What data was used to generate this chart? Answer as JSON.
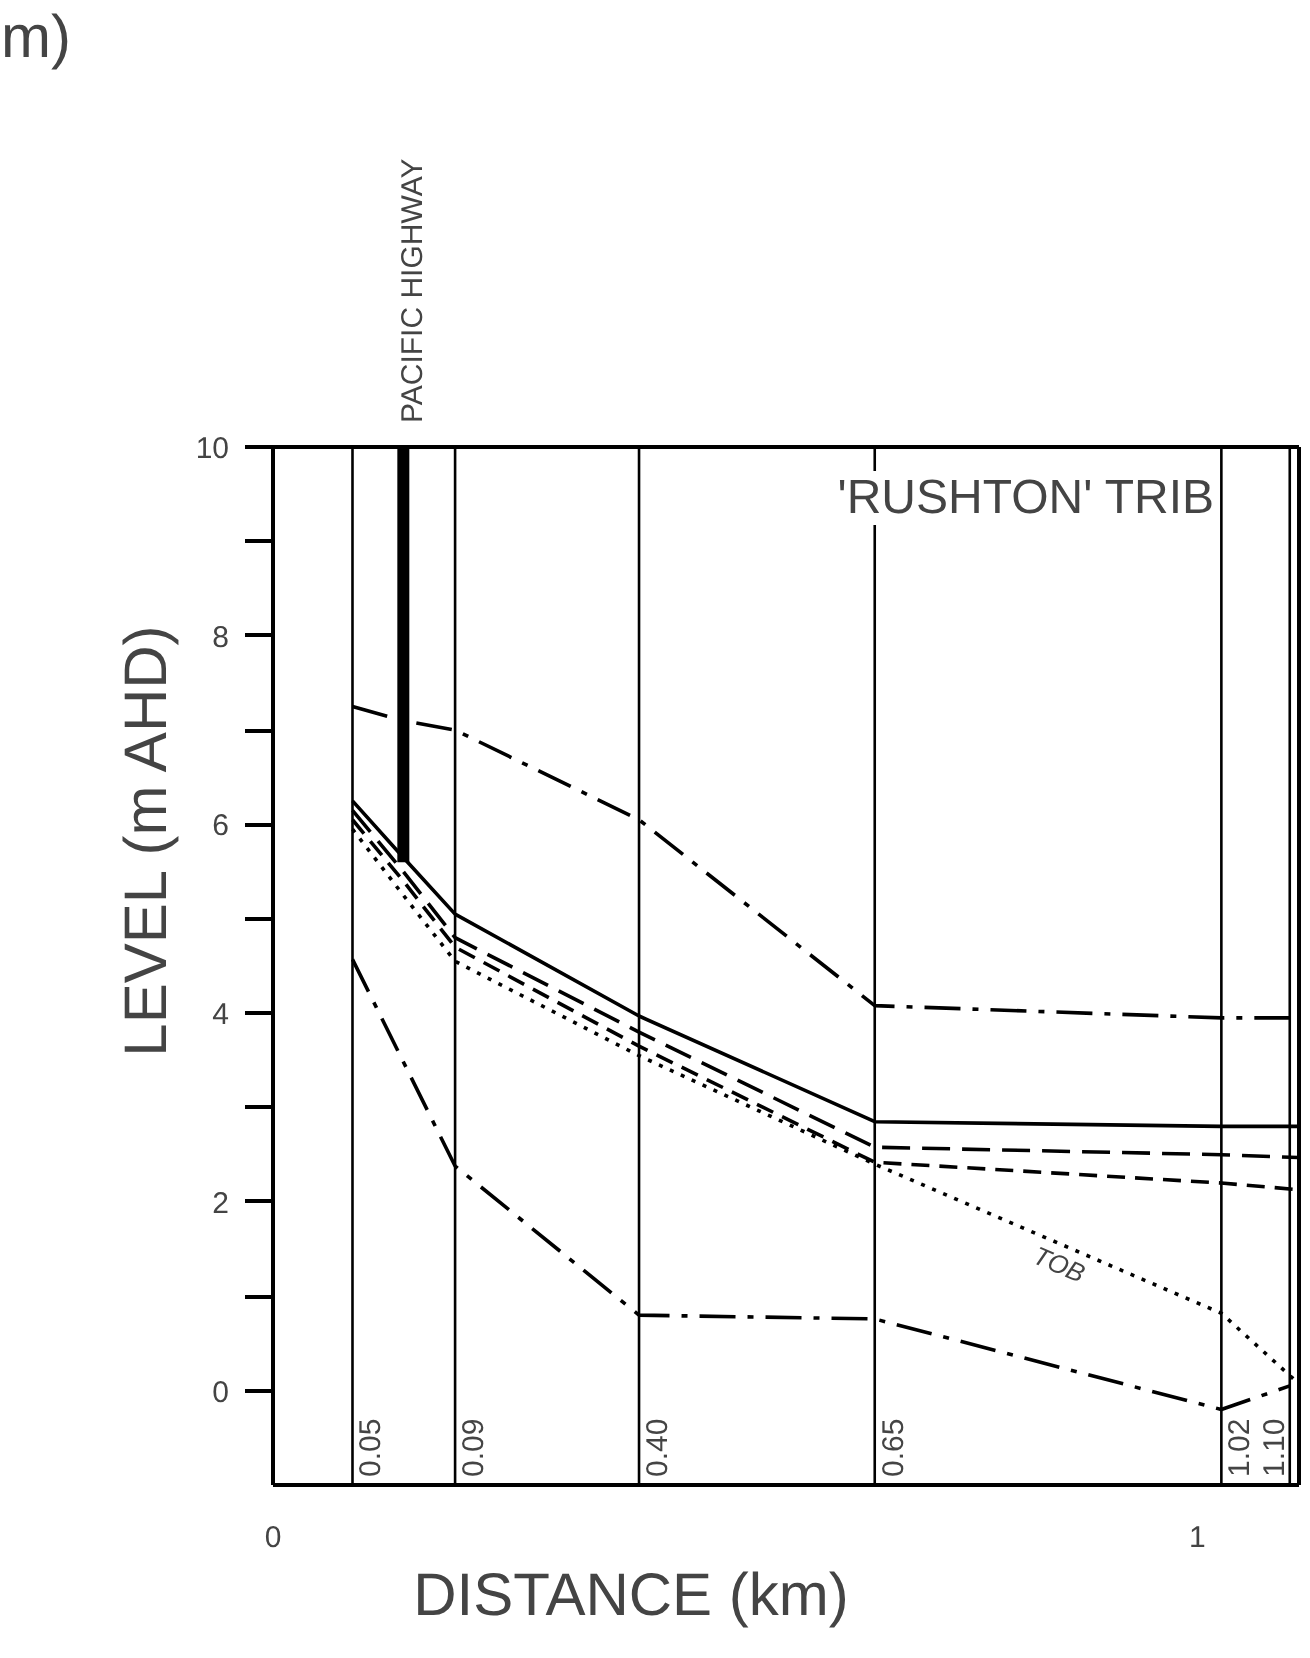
{
  "chart_data": {
    "type": "line",
    "xlabel": "DISTANCE    (km)",
    "ylabel": "LEVEL  (m AHD)",
    "xlim": [
      0,
      1.11
    ],
    "ylim": [
      -1,
      10
    ],
    "xticks": [
      0,
      1
    ],
    "yticks": [
      0,
      {
        "value": 1,
        "label": null
      },
      2,
      {
        "value": 3,
        "label": null
      },
      4,
      {
        "value": 5,
        "label": null
      },
      6,
      {
        "value": 7,
        "label": null
      },
      8,
      {
        "value": 9,
        "label": null
      },
      10
    ],
    "grid": false,
    "marker": "none",
    "series": [
      {
        "color": "#000000",
        "line_style": "dashdot",
        "x": [
          0.086,
          0.141,
          0.197,
          0.396,
          0.651,
          1.026,
          1.109
        ],
        "values": [
          7.25,
          7.1,
          7.0,
          6.05,
          4.08,
          3.95,
          3.95
        ]
      },
      {
        "color": "#000000",
        "line_style": "solid",
        "x": [
          0.086,
          0.141,
          0.197,
          0.396,
          0.651,
          1.026,
          1.109
        ],
        "values": [
          6.25,
          5.65,
          5.05,
          3.97,
          2.85,
          2.8,
          2.8
        ]
      },
      {
        "color": "#000000",
        "line_style": "dashed",
        "x": [
          0.086,
          0.141,
          0.197,
          0.396,
          0.651,
          1.026,
          1.109
        ],
        "values": [
          6.15,
          5.5,
          4.8,
          3.8,
          2.58,
          2.5,
          2.47
        ]
      },
      {
        "color": "#000000",
        "line_style": "dashed",
        "x": [
          0.086,
          0.141,
          0.197,
          0.396,
          0.651,
          1.026,
          1.109
        ],
        "values": [
          6.05,
          5.4,
          4.7,
          3.65,
          2.42,
          2.2,
          2.13
        ]
      },
      {
        "name": "TOB",
        "color": "#000000",
        "line_style": "dotted",
        "x": [
          0.086,
          0.141,
          0.197,
          0.396,
          0.651,
          1.026,
          1.109
        ],
        "values": [
          5.95,
          5.25,
          4.55,
          3.55,
          2.4,
          0.82,
          0.08
        ]
      },
      {
        "color": "#000000",
        "line_style": "dashdot",
        "x": [
          0.086,
          0.197,
          0.396,
          0.651,
          1.026,
          1.1
        ],
        "values": [
          4.57,
          2.38,
          0.8,
          0.76,
          -0.2,
          0.05
        ]
      },
      {
        "name": "PACIFIC HIGHWAY",
        "color": "#000000",
        "line_style": "solid",
        "x": [
          0.141,
          0.141
        ],
        "values": [
          5.6,
          10
        ]
      }
    ],
    "ref_lines": [
      {
        "axis": "x",
        "value": 0.086
      },
      {
        "axis": "x",
        "value": 0.197
      },
      {
        "axis": "x",
        "value": 0.396
      },
      {
        "axis": "x",
        "value": 0.651
      },
      {
        "axis": "x",
        "value": 1.026
      },
      {
        "axis": "x",
        "value": 1.1
      }
    ],
    "annotations": [
      "'RUSHTON' TRIB",
      "m)",
      {
        "text": "0.05",
        "x": 0.086,
        "y": -1
      },
      {
        "text": "0.09",
        "x": 0.197,
        "y": -1
      },
      {
        "text": "0.40",
        "x": 0.396,
        "y": -1
      },
      {
        "text": "0.65",
        "x": 0.651,
        "y": -1
      },
      {
        "text": "1.02",
        "x": 1.026,
        "y": -1
      },
      {
        "text": "1.10",
        "x": 1.1,
        "y": -1
      }
    ]
  }
}
